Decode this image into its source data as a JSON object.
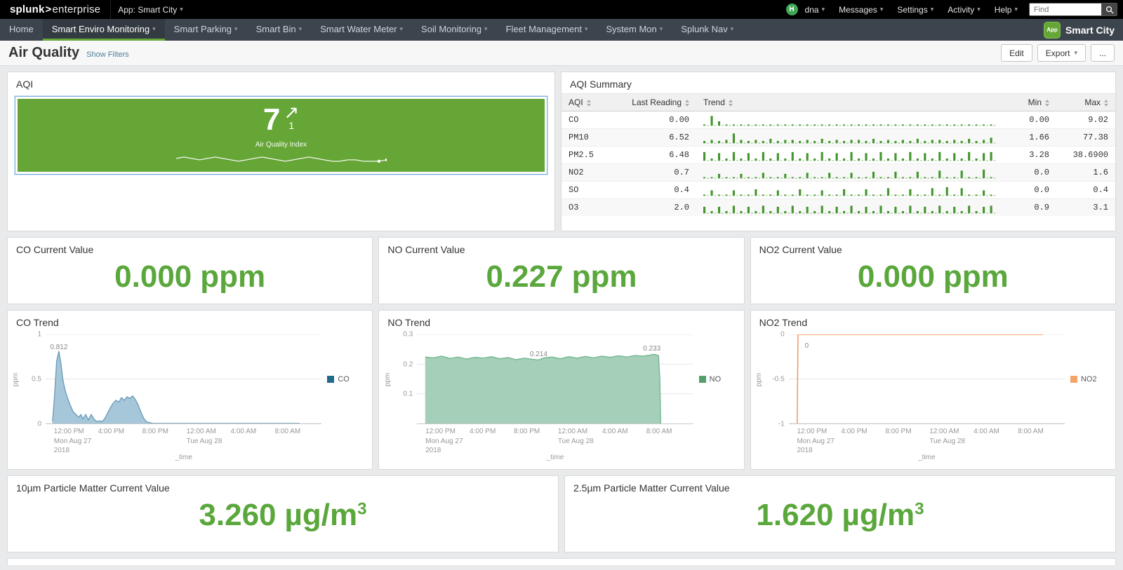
{
  "colors": {
    "accent_green": "#65a637",
    "value_green": "#5aa73c",
    "nav_dark": "#3c444d",
    "topbar_black": "#000000"
  },
  "topbar": {
    "logo_prefix": "splunk",
    "logo_suffix": "enterprise",
    "app_menu": "App: Smart City",
    "avatar_initial": "H",
    "user_menu": "dna",
    "menus": [
      {
        "label": "Messages"
      },
      {
        "label": "Settings"
      },
      {
        "label": "Activity"
      },
      {
        "label": "Help"
      }
    ],
    "find_placeholder": "Find"
  },
  "navbar": {
    "items": [
      {
        "label": "Home",
        "caret": false,
        "active": false
      },
      {
        "label": "Smart Enviro Monitoring",
        "caret": true,
        "active": true
      },
      {
        "label": "Smart Parking",
        "caret": true,
        "active": false
      },
      {
        "label": "Smart Bin",
        "caret": true,
        "active": false
      },
      {
        "label": "Smart Water Meter",
        "caret": true,
        "active": false
      },
      {
        "label": "Soil Monitoring",
        "caret": true,
        "active": false
      },
      {
        "label": "Fleet Management",
        "caret": true,
        "active": false
      },
      {
        "label": "System Mon",
        "caret": true,
        "active": false
      },
      {
        "label": "Splunk Nav",
        "caret": true,
        "active": false
      }
    ],
    "app_badge": "App",
    "app_name": "Smart City"
  },
  "header": {
    "title": "Air Quality",
    "show_filters": "Show Filters",
    "edit_label": "Edit",
    "export_label": "Export",
    "more_label": "..."
  },
  "aqi_panel": {
    "title": "AQI",
    "value": "7",
    "delta": "1",
    "caption": "Air Quality Index",
    "spark": [
      6,
      7,
      6,
      5,
      6,
      7,
      6,
      5,
      4,
      5,
      6,
      7,
      6,
      5,
      4,
      5,
      6,
      7,
      6,
      5,
      4,
      4,
      5,
      5,
      4,
      4,
      4,
      5
    ]
  },
  "aqi_summary": {
    "title": "AQI Summary",
    "columns": [
      {
        "label": "AQI",
        "cls": "col-name"
      },
      {
        "label": "Last Reading",
        "cls": "col-last num"
      },
      {
        "label": "Trend",
        "cls": "col-trend"
      },
      {
        "label": "Min",
        "cls": "col-min num"
      },
      {
        "label": "Max",
        "cls": "col-max num"
      }
    ],
    "rows": [
      {
        "name": "CO",
        "last": "0.00",
        "min": "0.00",
        "max": "9.02",
        "spark": [
          1,
          9,
          4,
          1,
          1,
          1,
          1,
          1,
          1,
          1,
          1,
          1,
          1,
          1,
          1,
          1,
          1,
          1,
          1,
          1,
          1,
          1,
          1,
          1,
          1,
          1,
          1,
          1,
          1,
          1,
          1,
          1,
          1,
          1,
          1,
          1,
          1,
          1,
          1,
          1
        ]
      },
      {
        "name": "PM10",
        "last": "6.52",
        "min": "1.66",
        "max": "77.38",
        "spark": [
          2,
          3,
          2,
          3,
          9,
          3,
          2,
          3,
          2,
          4,
          2,
          3,
          3,
          2,
          3,
          2,
          4,
          2,
          3,
          2,
          3,
          3,
          2,
          4,
          2,
          3,
          2,
          3,
          2,
          4,
          2,
          3,
          3,
          2,
          3,
          2,
          4,
          2,
          3,
          5
        ]
      },
      {
        "name": "PM2.5",
        "last": "6.48",
        "min": "3.28",
        "max": "38.6900",
        "spark": [
          8,
          2,
          7,
          2,
          8,
          2,
          7,
          2,
          8,
          2,
          7,
          2,
          8,
          2,
          7,
          2,
          8,
          2,
          7,
          2,
          8,
          2,
          7,
          2,
          8,
          2,
          7,
          2,
          8,
          2,
          7,
          2,
          8,
          2,
          7,
          2,
          8,
          2,
          7,
          8
        ]
      },
      {
        "name": "NO2",
        "last": "0.7",
        "min": "0.0",
        "max": "1.6",
        "spark": [
          1,
          1,
          4,
          1,
          1,
          4,
          1,
          1,
          5,
          1,
          1,
          4,
          1,
          1,
          5,
          1,
          1,
          5,
          1,
          1,
          5,
          1,
          1,
          6,
          1,
          1,
          6,
          1,
          1,
          6,
          1,
          1,
          7,
          1,
          1,
          7,
          1,
          1,
          8,
          1
        ]
      },
      {
        "name": "SO",
        "last": "0.4",
        "min": "0.0",
        "max": "0.4",
        "spark": [
          1,
          5,
          1,
          1,
          5,
          1,
          1,
          6,
          1,
          1,
          5,
          1,
          1,
          6,
          1,
          1,
          5,
          1,
          1,
          6,
          1,
          1,
          6,
          1,
          1,
          7,
          1,
          1,
          6,
          1,
          1,
          7,
          1,
          8,
          1,
          7,
          1,
          1,
          5,
          1
        ]
      },
      {
        "name": "O3",
        "last": "2.0",
        "min": "0.9",
        "max": "3.1",
        "spark": [
          6,
          2,
          6,
          2,
          7,
          2,
          6,
          2,
          7,
          2,
          6,
          2,
          7,
          2,
          6,
          2,
          7,
          2,
          6,
          2,
          7,
          2,
          6,
          2,
          7,
          2,
          6,
          2,
          7,
          2,
          6,
          2,
          7,
          2,
          6,
          2,
          7,
          2,
          6,
          7
        ]
      }
    ]
  },
  "co_value": {
    "title": "CO Current Value",
    "value": "0.000",
    "unit": "ppm",
    "unit_sup": ""
  },
  "no_value": {
    "title": "NO Current Value",
    "value": "0.227",
    "unit": "ppm",
    "unit_sup": ""
  },
  "no2_value": {
    "title": "NO2 Current Value",
    "value": "0.000",
    "unit": "ppm",
    "unit_sup": ""
  },
  "pm10_value": {
    "title": "10µm Particle Matter Current Value",
    "value": "3.260",
    "unit": "µg/m",
    "unit_sup": "3"
  },
  "pm25_value": {
    "title": "2.5µm Particle Matter Current Value",
    "value": "1.620",
    "unit": "µg/m",
    "unit_sup": "3"
  },
  "time_axis": [
    {
      "pct": 3,
      "lines": [
        "12:00 PM",
        "Mon Aug 27",
        "2018"
      ]
    },
    {
      "pct": 19,
      "lines": [
        "4:00 PM"
      ]
    },
    {
      "pct": 35,
      "lines": [
        "8:00 PM"
      ]
    },
    {
      "pct": 51,
      "lines": [
        "12:00 AM",
        "Tue Aug 28"
      ]
    },
    {
      "pct": 67,
      "lines": [
        "4:00 AM"
      ]
    },
    {
      "pct": 83,
      "lines": [
        "8:00 AM"
      ]
    }
  ],
  "co_trend": {
    "title": "CO Trend",
    "ylabel": "ppm",
    "xlabel": "_time",
    "legend": "CO",
    "type": "area",
    "line_color": "#6d9eba",
    "fill_color": "#a6c7d9",
    "legend_color": "#1f6a8d",
    "y_domain": [
      0,
      1
    ],
    "y_ticks": [
      {
        "v": 1,
        "label": "1"
      },
      {
        "v": 0.5,
        "label": "0.5"
      },
      {
        "v": 0,
        "label": "0"
      }
    ],
    "annotations": [
      {
        "x": 4.8,
        "v": 0.812,
        "label": "0.812",
        "ox": 0,
        "oy": 0
      }
    ],
    "points": [
      [
        2.5,
        0.02
      ],
      [
        3.2,
        0.3
      ],
      [
        4,
        0.7
      ],
      [
        4.8,
        0.812
      ],
      [
        5.5,
        0.68
      ],
      [
        6.2,
        0.5
      ],
      [
        7,
        0.38
      ],
      [
        8,
        0.28
      ],
      [
        9,
        0.2
      ],
      [
        10,
        0.13
      ],
      [
        11,
        0.1
      ],
      [
        12,
        0.07
      ],
      [
        12.8,
        0.1
      ],
      [
        13.5,
        0.05
      ],
      [
        14.5,
        0.1
      ],
      [
        15.5,
        0.04
      ],
      [
        16.5,
        0.1
      ],
      [
        17.5,
        0.05
      ],
      [
        18.5,
        0.02
      ],
      [
        19.5,
        0.03
      ],
      [
        20.5,
        0.02
      ],
      [
        21.5,
        0.06
      ],
      [
        22.5,
        0.12
      ],
      [
        23.5,
        0.18
      ],
      [
        24.5,
        0.23
      ],
      [
        25.5,
        0.26
      ],
      [
        26.5,
        0.24
      ],
      [
        27.5,
        0.29
      ],
      [
        28.5,
        0.26
      ],
      [
        29.5,
        0.3
      ],
      [
        30.5,
        0.28
      ],
      [
        31.5,
        0.31
      ],
      [
        32.5,
        0.27
      ],
      [
        33.5,
        0.21
      ],
      [
        34.5,
        0.13
      ],
      [
        35.5,
        0.06
      ],
      [
        36.5,
        0.02
      ],
      [
        37.5,
        0.01
      ],
      [
        39,
        0
      ],
      [
        92,
        0
      ]
    ]
  },
  "no_trend": {
    "title": "NO Trend",
    "ylabel": "ppm",
    "xlabel": "_time",
    "legend": "NO",
    "type": "area",
    "line_color": "#74b893",
    "fill_color": "#a5cfb8",
    "legend_color": "#53a06c",
    "y_domain": [
      0,
      0.3
    ],
    "y_ticks": [
      {
        "v": 0.3,
        "label": "0.3"
      },
      {
        "v": 0.2,
        "label": "0.2"
      },
      {
        "v": 0.1,
        "label": "0.1"
      }
    ],
    "annotations": [
      {
        "x": 44,
        "v": 0.214,
        "label": "0.214",
        "ox": 0,
        "oy": -2
      },
      {
        "x": 85,
        "v": 0.233,
        "label": "0.233",
        "ox": 0,
        "oy": -2
      }
    ],
    "points": [
      [
        3,
        0.224
      ],
      [
        6,
        0.221
      ],
      [
        9,
        0.227
      ],
      [
        12,
        0.219
      ],
      [
        15,
        0.224
      ],
      [
        18,
        0.217
      ],
      [
        21,
        0.223
      ],
      [
        24,
        0.22
      ],
      [
        27,
        0.225
      ],
      [
        30,
        0.218
      ],
      [
        33,
        0.222
      ],
      [
        36,
        0.215
      ],
      [
        39,
        0.22
      ],
      [
        42,
        0.216
      ],
      [
        44,
        0.214
      ],
      [
        46,
        0.221
      ],
      [
        49,
        0.224
      ],
      [
        52,
        0.218
      ],
      [
        55,
        0.225
      ],
      [
        58,
        0.22
      ],
      [
        61,
        0.226
      ],
      [
        64,
        0.221
      ],
      [
        67,
        0.227
      ],
      [
        70,
        0.223
      ],
      [
        73,
        0.228
      ],
      [
        76,
        0.224
      ],
      [
        79,
        0.229
      ],
      [
        82,
        0.227
      ],
      [
        84,
        0.23
      ],
      [
        86,
        0.233
      ],
      [
        87.5,
        0.229
      ],
      [
        88,
        0.15
      ],
      [
        88.3,
        0
      ]
    ]
  },
  "no2_trend": {
    "title": "NO2 Trend",
    "ylabel": "ppm",
    "xlabel": "_time",
    "legend": "NO2",
    "type": "line",
    "line_color": "#f09150",
    "fill_color": null,
    "legend_color": "#f5a469",
    "y_domain": [
      -1,
      0
    ],
    "y_ticks": [
      {
        "v": 0,
        "label": "0"
      },
      {
        "v": -0.5,
        "label": "-0.5"
      },
      {
        "v": -1,
        "label": "-1"
      }
    ],
    "annotations": [
      {
        "x": 3.5,
        "v": 0,
        "label": "0",
        "ox": 12,
        "oy": 22
      }
    ],
    "points": [
      [
        3,
        -1
      ],
      [
        3.3,
        0
      ],
      [
        92,
        0
      ]
    ]
  }
}
